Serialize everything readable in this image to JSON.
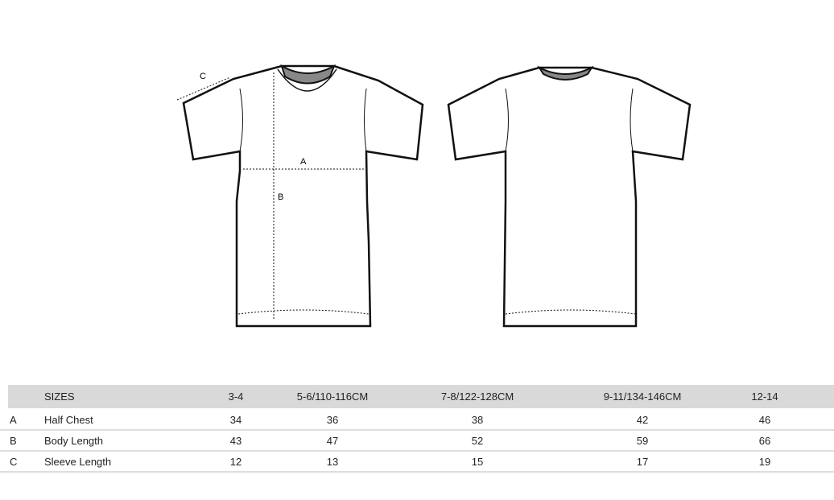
{
  "diagram": {
    "labels": {
      "a": "A",
      "b": "B",
      "c": "C"
    }
  },
  "table": {
    "header": {
      "label": "SIZES",
      "sizes": [
        "3-4",
        "5-6/110-116CM",
        "7-8/122-128CM",
        "9-11/134-146CM",
        "12-14"
      ]
    },
    "rows": [
      {
        "code": "A",
        "name": "Half Chest",
        "values": [
          "34",
          "36",
          "38",
          "42",
          "46"
        ]
      },
      {
        "code": "B",
        "name": "Body Length",
        "values": [
          "43",
          "47",
          "52",
          "59",
          "66"
        ]
      },
      {
        "code": "C",
        "name": "Sleeve Length",
        "values": [
          "12",
          "13",
          "15",
          "17",
          "19"
        ]
      }
    ]
  }
}
